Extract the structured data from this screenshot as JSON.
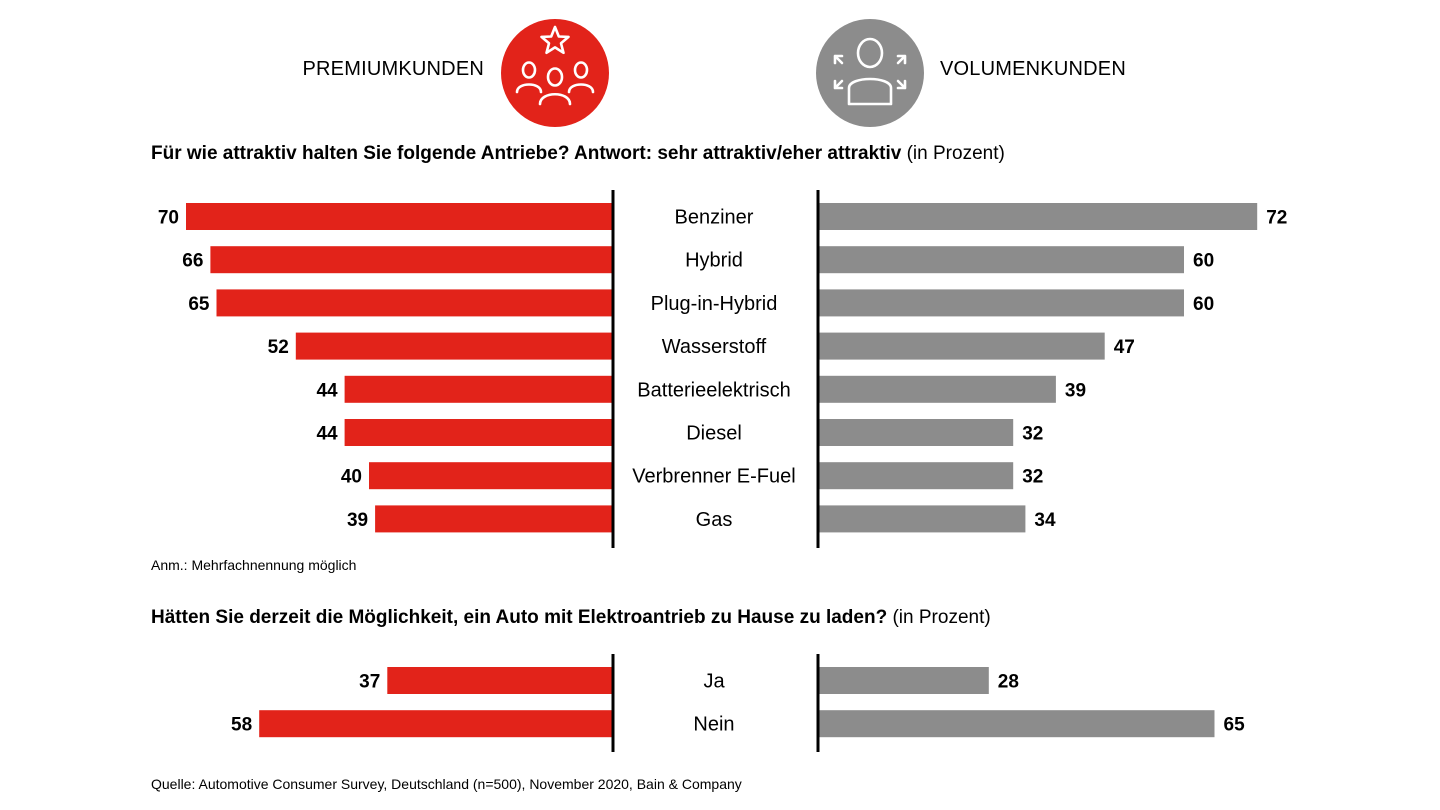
{
  "legend": {
    "premium_label": "PREMIUMKUNDEN",
    "volume_label": "VOLUMENKUNDEN",
    "premium_icon": "group-star-icon",
    "volume_icon": "person-arrows-icon"
  },
  "colors": {
    "premium": "#e2231a",
    "volume": "#8c8c8c",
    "axis": "#000000"
  },
  "q1": {
    "bold": "Für wie attraktiv halten Sie folgende Antriebe? Antwort: sehr attraktiv/eher attraktiv",
    "normal": " (in Prozent)"
  },
  "note": "Anm.: Mehrfachnennung möglich",
  "q2": {
    "bold": "Hätten Sie derzeit die Möglichkeit, ein Auto mit Elektroantrieb zu Hause zu laden?",
    "normal": " (in Prozent)"
  },
  "source": "Quelle: Automotive Consumer Survey, Deutschland (n=500), November 2020, Bain & Company",
  "chart_data": [
    {
      "type": "bar",
      "categories": [
        "Benziner",
        "Hybrid",
        "Plug-in-Hybrid",
        "Wasserstoff",
        "Batterieelektrisch",
        "Diesel",
        "Verbrenner E-Fuel",
        "Gas"
      ],
      "series": [
        {
          "name": "PREMIUMKUNDEN",
          "values": [
            70,
            66,
            65,
            52,
            44,
            44,
            40,
            39
          ]
        },
        {
          "name": "VOLUMENKUNDEN",
          "values": [
            72,
            60,
            60,
            47,
            39,
            32,
            32,
            34
          ]
        }
      ]
    },
    {
      "type": "bar",
      "categories": [
        "Ja",
        "Nein"
      ],
      "series": [
        {
          "name": "PREMIUMKUNDEN",
          "values": [
            37,
            58
          ]
        },
        {
          "name": "VOLUMENKUNDEN",
          "values": [
            28,
            65
          ]
        }
      ]
    }
  ]
}
